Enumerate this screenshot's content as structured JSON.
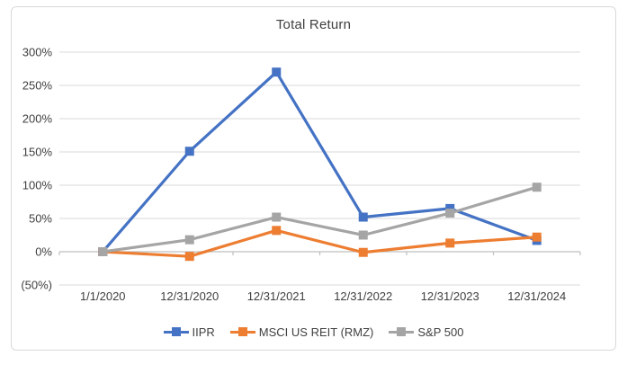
{
  "chart_data": {
    "type": "line",
    "title": "Total Return",
    "xlabel": "",
    "ylabel": "",
    "categories": [
      "1/1/2020",
      "12/31/2020",
      "12/31/2021",
      "12/31/2022",
      "12/31/2023",
      "12/31/2024"
    ],
    "series": [
      {
        "name": "IIPR",
        "color": "#4472C4",
        "values": [
          0,
          151,
          270,
          52,
          65,
          17
        ]
      },
      {
        "name": "MSCI US REIT (RMZ)",
        "color": "#ED7D31",
        "values": [
          0,
          -7,
          32,
          -1,
          13,
          22
        ]
      },
      {
        "name": "S&P 500",
        "color": "#A5A5A5",
        "values": [
          0,
          18,
          52,
          25,
          58,
          97
        ]
      }
    ],
    "y_ticks": [
      {
        "value": 300,
        "label": "300%"
      },
      {
        "value": 250,
        "label": "250%"
      },
      {
        "value": 200,
        "label": "200%"
      },
      {
        "value": 150,
        "label": "150%"
      },
      {
        "value": 100,
        "label": "100%"
      },
      {
        "value": 50,
        "label": "50%"
      },
      {
        "value": 0,
        "label": "0%"
      },
      {
        "value": -50,
        "label": "(50%)"
      }
    ],
    "ylim": [
      -50,
      300
    ],
    "grid": true,
    "legend_position": "bottom",
    "colors": {
      "gridline": "#D9D9D9",
      "axis_line": "#BFBFBF",
      "text": "#404040",
      "chart_border": "#D9D9D9",
      "background": "#FFFFFF"
    }
  }
}
